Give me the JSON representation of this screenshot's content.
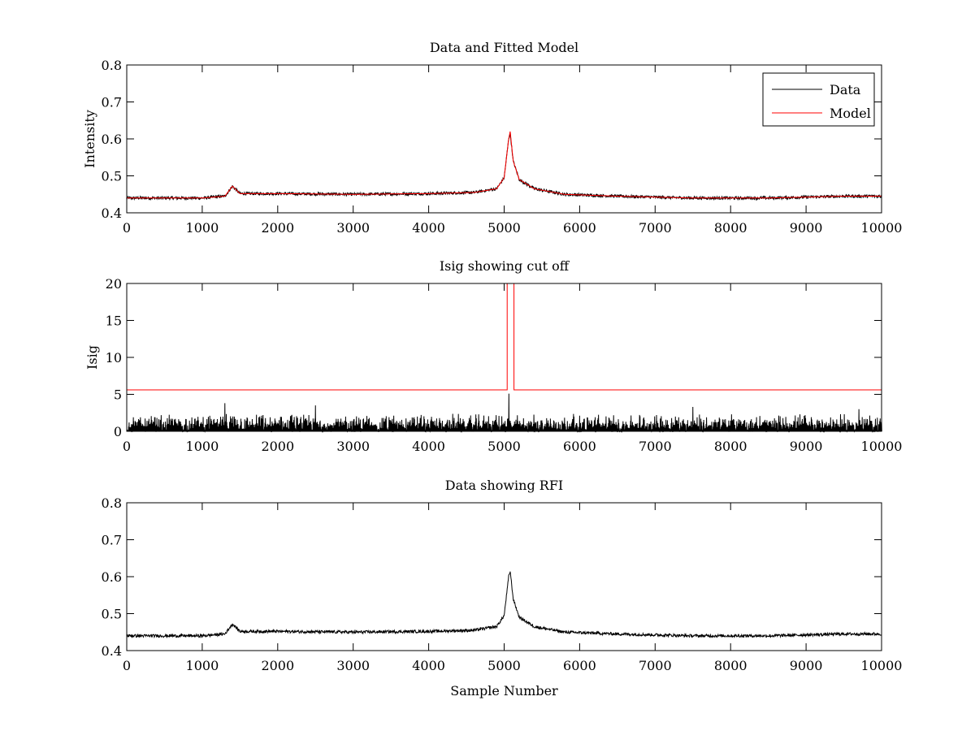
{
  "figure": {
    "background": "#ffffff",
    "axis_color": "#000000"
  },
  "chart_data": [
    {
      "type": "line",
      "title": "Data and Fitted Model",
      "xlabel": "",
      "ylabel": "Intensity",
      "xlim": [
        0,
        10000
      ],
      "ylim": [
        0.4,
        0.8
      ],
      "xticks": [
        "0",
        "1000",
        "2000",
        "3000",
        "4000",
        "5000",
        "6000",
        "7000",
        "8000",
        "9000",
        "10000"
      ],
      "yticks": [
        "0.4",
        "0.5",
        "0.6",
        "0.7",
        "0.8"
      ],
      "grid": false,
      "legend": {
        "placement": "top-right",
        "entries": [
          "Data",
          "Model"
        ]
      },
      "series": [
        {
          "name": "Data",
          "color": "#000000",
          "x": [
            0,
            500,
            1000,
            1300,
            1400,
            1500,
            1600,
            2000,
            3000,
            4000,
            4600,
            4900,
            5000,
            5060,
            5080,
            5120,
            5200,
            5400,
            5800,
            6500,
            7500,
            8500,
            9500,
            10000
          ],
          "values": [
            0.44,
            0.44,
            0.44,
            0.445,
            0.472,
            0.452,
            0.452,
            0.452,
            0.45,
            0.452,
            0.455,
            0.465,
            0.495,
            0.6,
            0.615,
            0.54,
            0.49,
            0.465,
            0.45,
            0.445,
            0.44,
            0.44,
            0.445,
            0.445
          ],
          "noise": 0.004
        },
        {
          "name": "Model",
          "color": "#ff0000",
          "x": [
            0,
            500,
            1000,
            1300,
            1400,
            1500,
            1600,
            2000,
            3000,
            4000,
            4600,
            4900,
            5000,
            5060,
            5080,
            5120,
            5200,
            5400,
            5800,
            6500,
            7500,
            8500,
            9500,
            10000
          ],
          "values": [
            0.44,
            0.44,
            0.44,
            0.445,
            0.472,
            0.452,
            0.452,
            0.452,
            0.45,
            0.452,
            0.455,
            0.465,
            0.495,
            0.6,
            0.62,
            0.54,
            0.49,
            0.465,
            0.45,
            0.445,
            0.44,
            0.44,
            0.445,
            0.445
          ],
          "noise": 0
        }
      ]
    },
    {
      "type": "line",
      "title": "Isig showing cut off",
      "xlabel": "",
      "ylabel": "Isig",
      "xlim": [
        0,
        10000
      ],
      "ylim": [
        0,
        20
      ],
      "xticks": [
        "0",
        "1000",
        "2000",
        "3000",
        "4000",
        "5000",
        "6000",
        "7000",
        "8000",
        "9000",
        "10000"
      ],
      "yticks": [
        "0",
        "5",
        "10",
        "15",
        "20"
      ],
      "grid": false,
      "series": [
        {
          "name": "Isig",
          "color": "#000000",
          "kind": "noise-bars",
          "x": [
            0,
            10000
          ],
          "typical_max": 2.5,
          "peaks": [
            {
              "x": 1300,
              "value": 3.8
            },
            {
              "x": 2500,
              "value": 3.5
            },
            {
              "x": 5060,
              "value": 5.1
            },
            {
              "x": 7500,
              "value": 3.3
            },
            {
              "x": 9700,
              "value": 3.0
            }
          ]
        },
        {
          "name": "Cut off",
          "color": "#ff0000",
          "kind": "step",
          "x": [
            0,
            5040,
            5040,
            5130,
            5130,
            10000
          ],
          "values": [
            5.6,
            5.6,
            20,
            20,
            5.6,
            5.6
          ]
        }
      ]
    },
    {
      "type": "line",
      "title": "Data showing RFI",
      "xlabel": "Sample Number",
      "ylabel": "",
      "xlim": [
        0,
        10000
      ],
      "ylim": [
        0.4,
        0.8
      ],
      "xticks": [
        "0",
        "1000",
        "2000",
        "3000",
        "4000",
        "5000",
        "6000",
        "7000",
        "8000",
        "9000",
        "10000"
      ],
      "yticks": [
        "0.4",
        "0.5",
        "0.6",
        "0.7",
        "0.8"
      ],
      "grid": false,
      "series": [
        {
          "name": "Data",
          "color": "#000000",
          "x": [
            0,
            500,
            1000,
            1300,
            1400,
            1500,
            1600,
            2000,
            3000,
            4000,
            4600,
            4900,
            5000,
            5060,
            5080,
            5120,
            5200,
            5400,
            5800,
            6500,
            7500,
            8500,
            9500,
            10000
          ],
          "values": [
            0.44,
            0.44,
            0.44,
            0.445,
            0.472,
            0.452,
            0.452,
            0.452,
            0.45,
            0.452,
            0.455,
            0.465,
            0.495,
            0.6,
            0.615,
            0.54,
            0.49,
            0.465,
            0.45,
            0.445,
            0.44,
            0.44,
            0.445,
            0.445
          ],
          "noise": 0.004
        }
      ]
    }
  ]
}
